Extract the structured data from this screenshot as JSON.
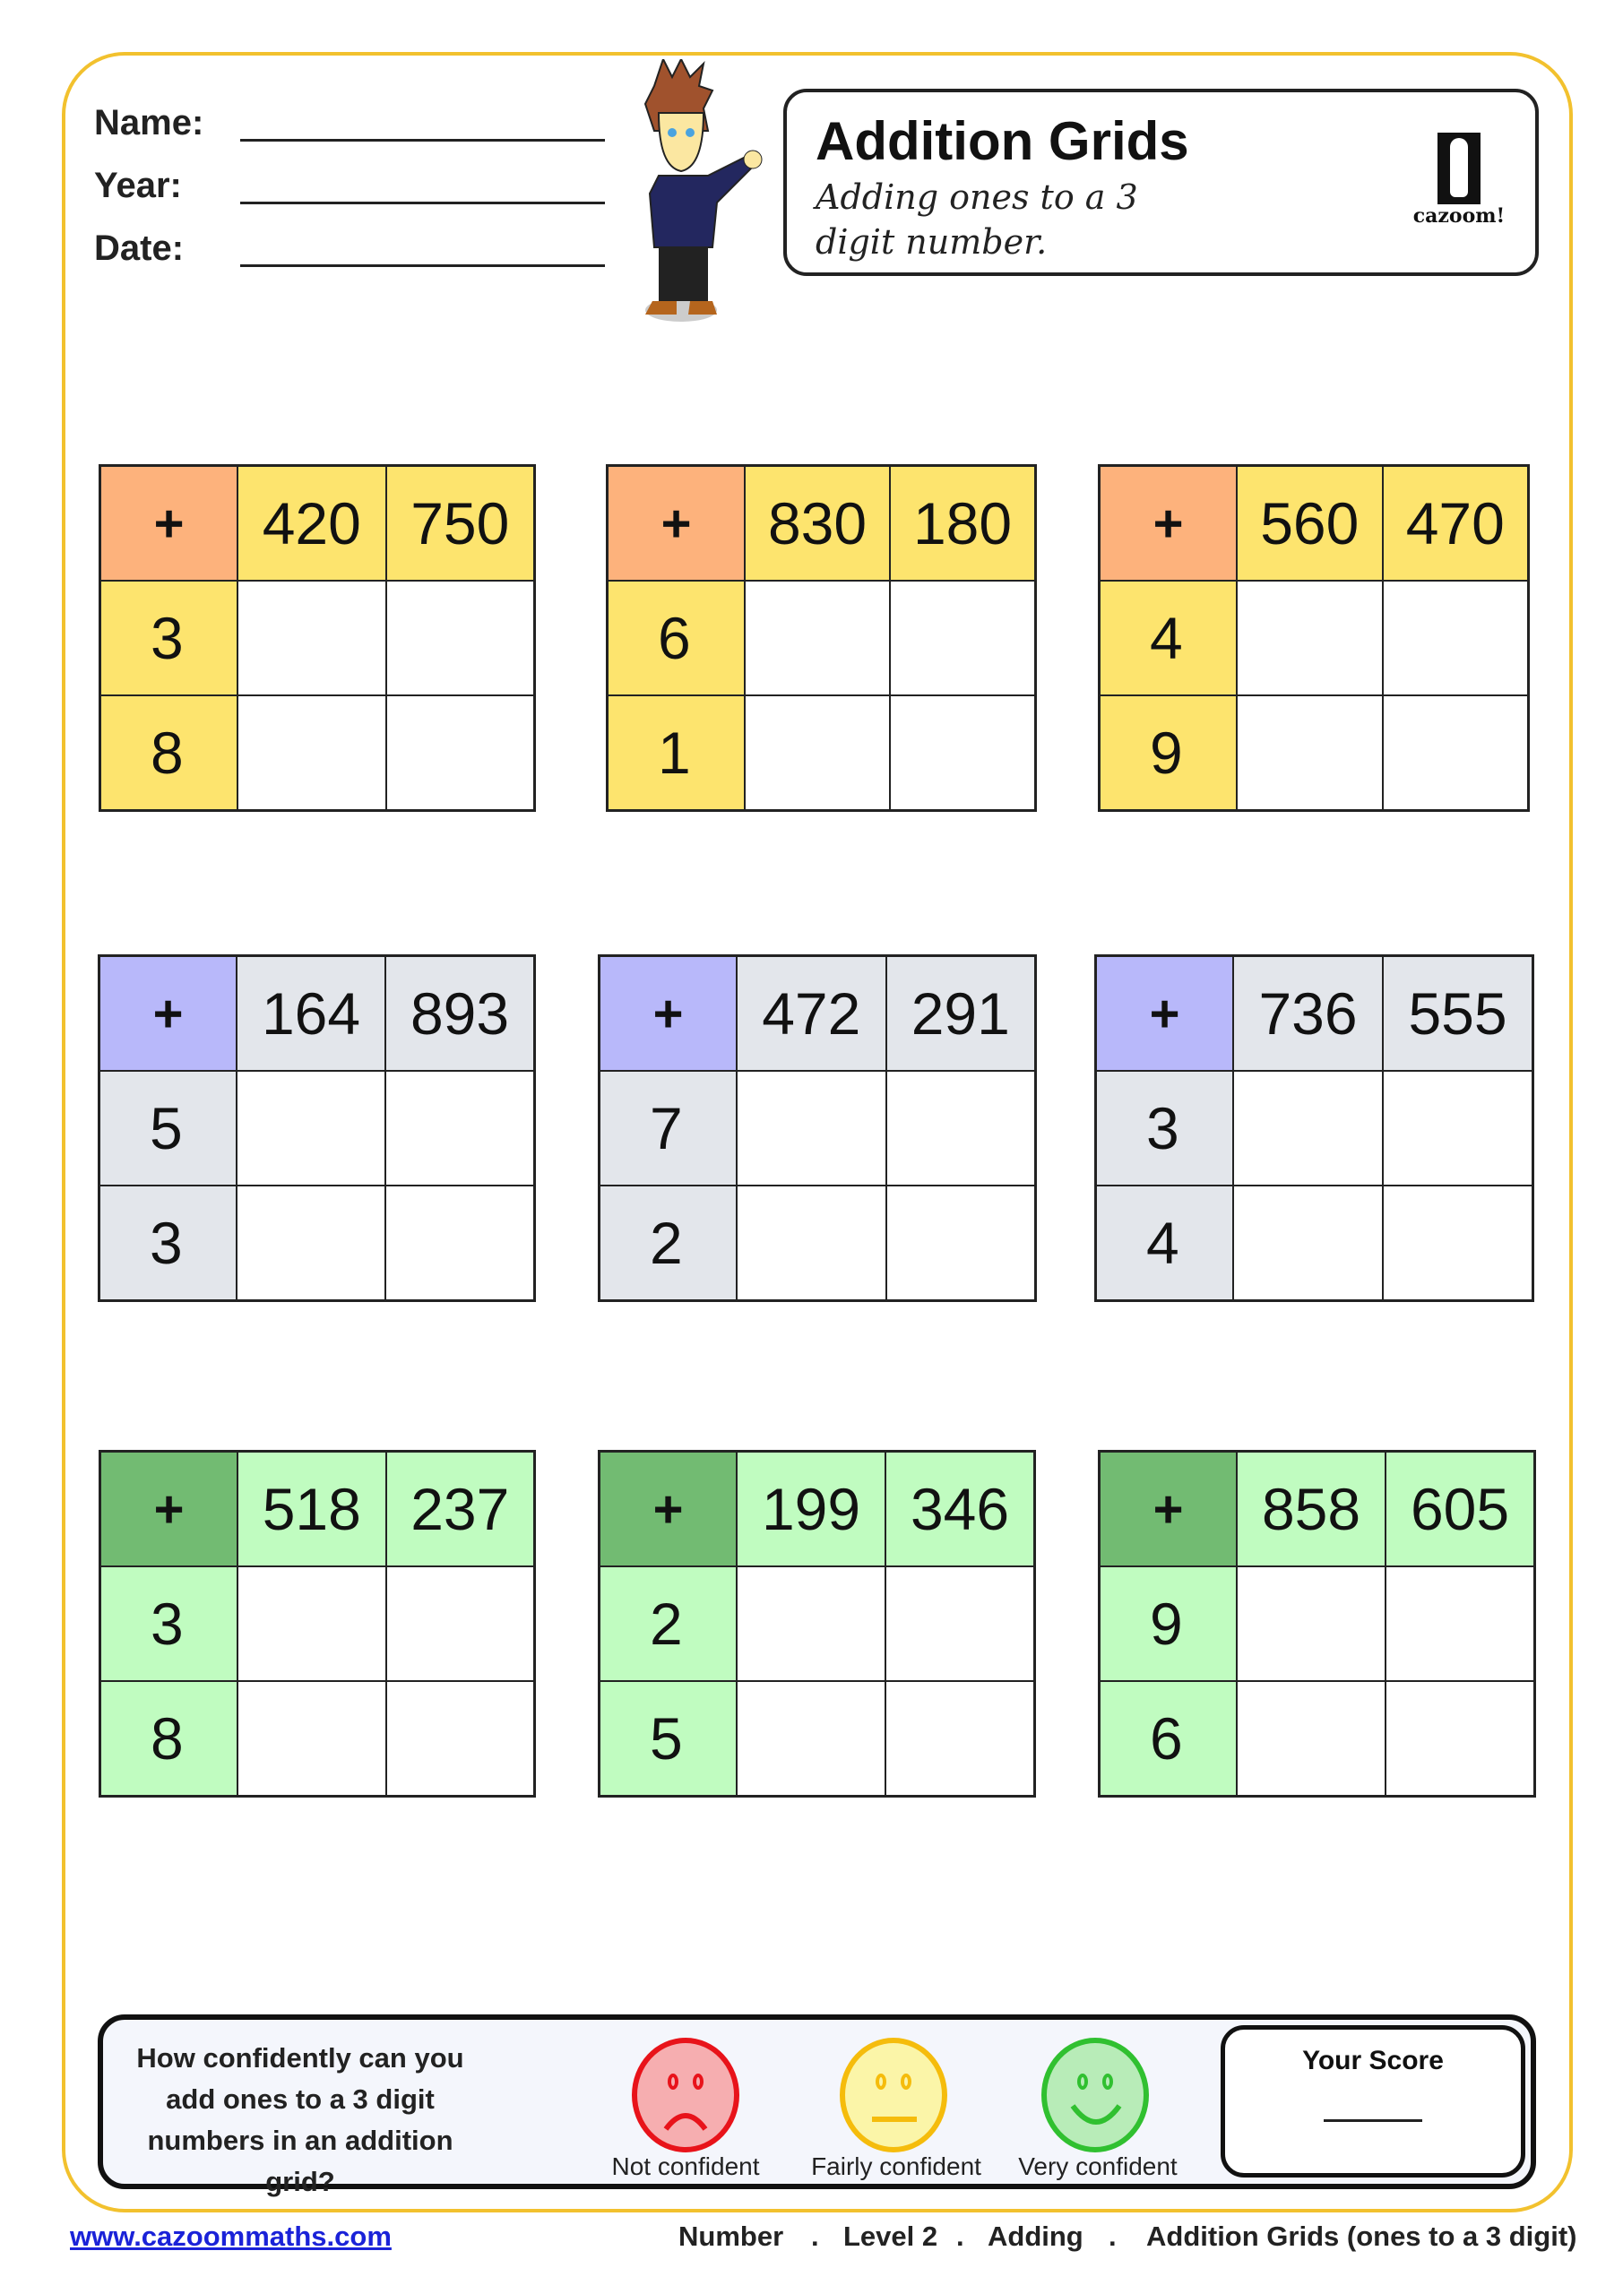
{
  "header": {
    "name_label": "Name:",
    "year_label": "Year:",
    "date_label": "Date:"
  },
  "title": {
    "heading": "Addition Grids",
    "subtitle": "Adding ones to a 3 digit number.",
    "logo_text": "cazoom!"
  },
  "grids": [
    {
      "op": "+",
      "cols": [
        "420",
        "750"
      ],
      "rows": [
        "3",
        "8"
      ]
    },
    {
      "op": "+",
      "cols": [
        "830",
        "180"
      ],
      "rows": [
        "6",
        "1"
      ]
    },
    {
      "op": "+",
      "cols": [
        "560",
        "470"
      ],
      "rows": [
        "4",
        "9"
      ]
    },
    {
      "op": "+",
      "cols": [
        "164",
        "893"
      ],
      "rows": [
        "5",
        "3"
      ]
    },
    {
      "op": "+",
      "cols": [
        "472",
        "291"
      ],
      "rows": [
        "7",
        "2"
      ]
    },
    {
      "op": "+",
      "cols": [
        "736",
        "555"
      ],
      "rows": [
        "3",
        "4"
      ]
    },
    {
      "op": "+",
      "cols": [
        "518",
        "237"
      ],
      "rows": [
        "3",
        "8"
      ]
    },
    {
      "op": "+",
      "cols": [
        "199",
        "346"
      ],
      "rows": [
        "2",
        "5"
      ]
    },
    {
      "op": "+",
      "cols": [
        "858",
        "605"
      ],
      "rows": [
        "9",
        "6"
      ]
    }
  ],
  "colors": {
    "row1": {
      "corner": "#fdb27c",
      "head": "#fde46e"
    },
    "row2": {
      "corner": "#b8b8fa",
      "head": "#e3e6eb"
    },
    "row3": {
      "corner": "#72bb72",
      "head": "#c0fcc0"
    },
    "frame": "#f2c12e"
  },
  "confidence": {
    "question": "How confidently can you add ones to a 3 digit numbers in an addition grid?",
    "options": [
      "Not confident",
      "Fairly confident",
      "Very confident"
    ],
    "score_label": "Your Score"
  },
  "footer": {
    "link": "www.cazoommaths.com",
    "breadcrumb": [
      "Number",
      ".",
      "Level 2",
      ".",
      "Adding",
      ".",
      "Addition Grids (ones to a 3 digit)"
    ]
  }
}
